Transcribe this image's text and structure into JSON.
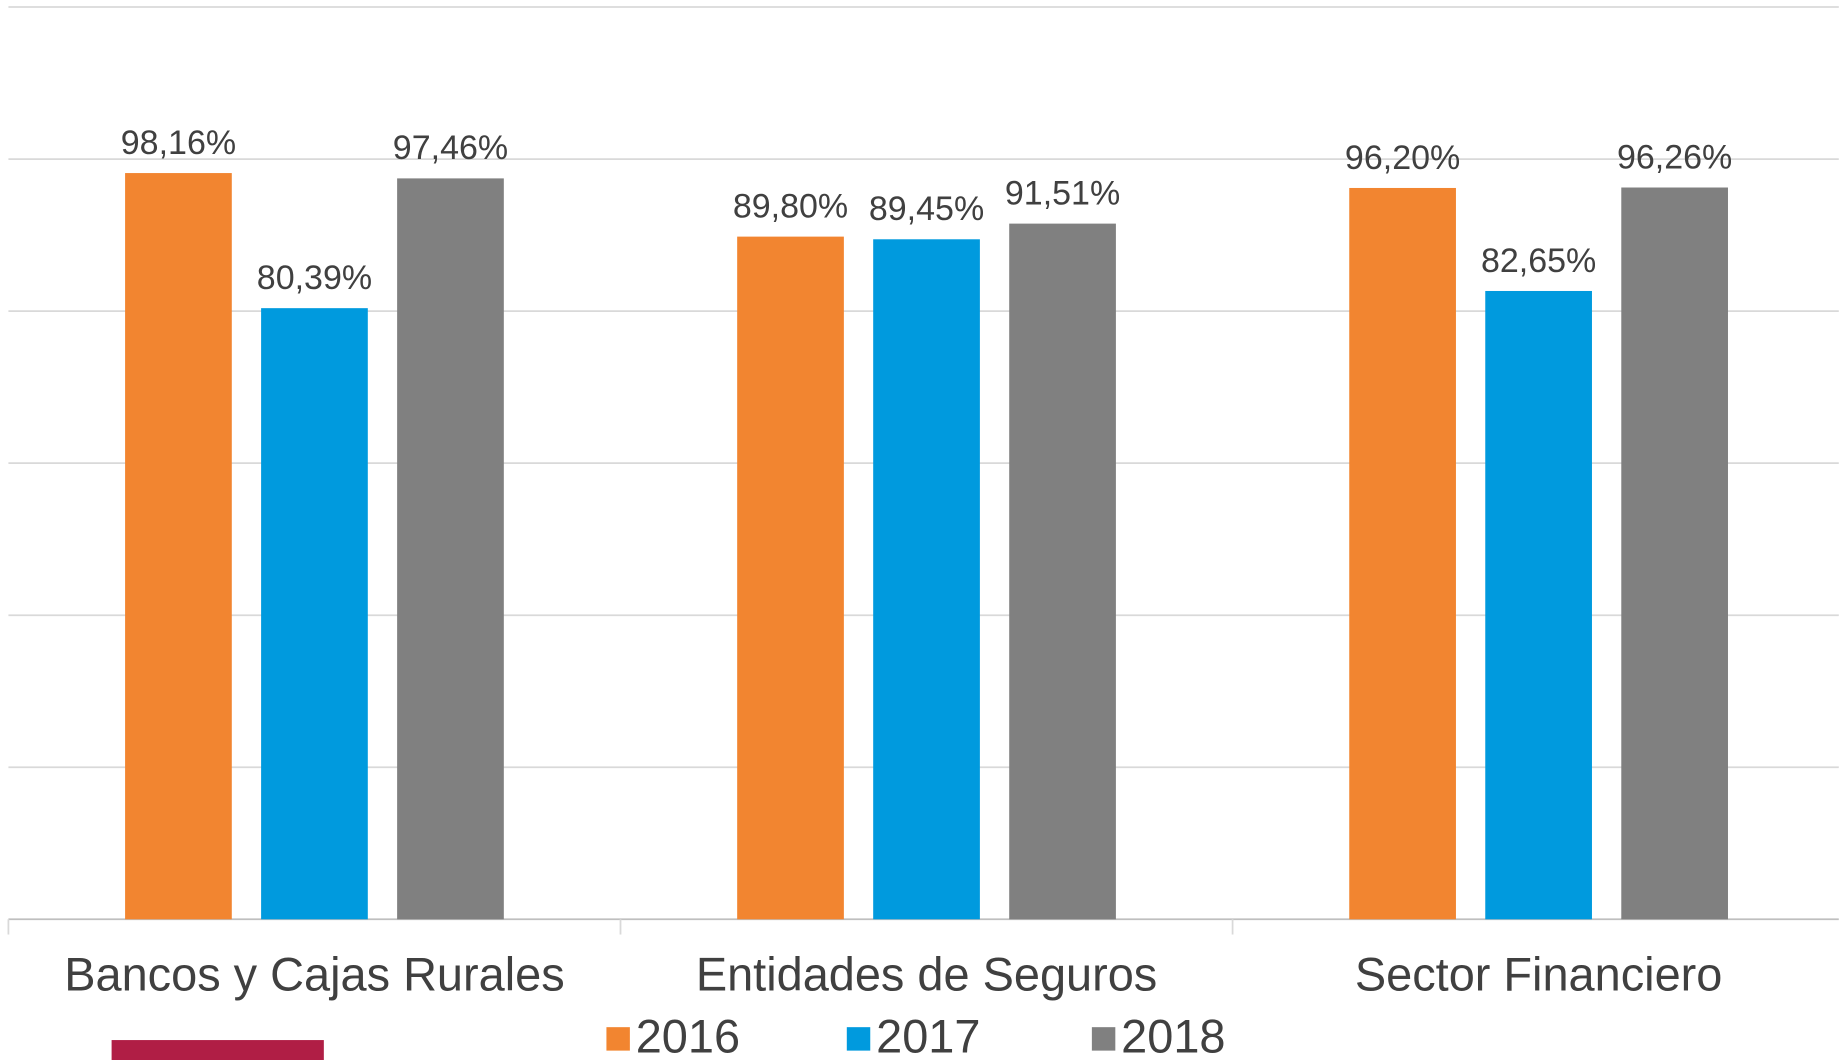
{
  "chart_data": {
    "type": "bar",
    "categories": [
      "Bancos y Cajas Rurales",
      "Entidades de Seguros",
      "Sector Financiero"
    ],
    "series": [
      {
        "name": "2016",
        "color": "#F28530",
        "values": [
          98.16,
          89.8,
          96.2
        ],
        "value_labels": [
          "98,16%",
          "89,80%",
          "96,20%"
        ]
      },
      {
        "name": "2017",
        "color": "#009ADE",
        "values": [
          80.39,
          89.45,
          82.65
        ],
        "value_labels": [
          "80,39%",
          "89,45%",
          "82,65%"
        ]
      },
      {
        "name": "2018",
        "color": "#808080",
        "values": [
          97.46,
          91.51,
          96.26
        ],
        "value_labels": [
          "97,46%",
          "91,51%",
          "96,26%"
        ]
      }
    ],
    "ylim": [
      0,
      120
    ],
    "yticks": [
      0,
      20,
      40,
      60,
      80,
      100,
      120
    ],
    "grid": true,
    "legend": "bottom"
  }
}
